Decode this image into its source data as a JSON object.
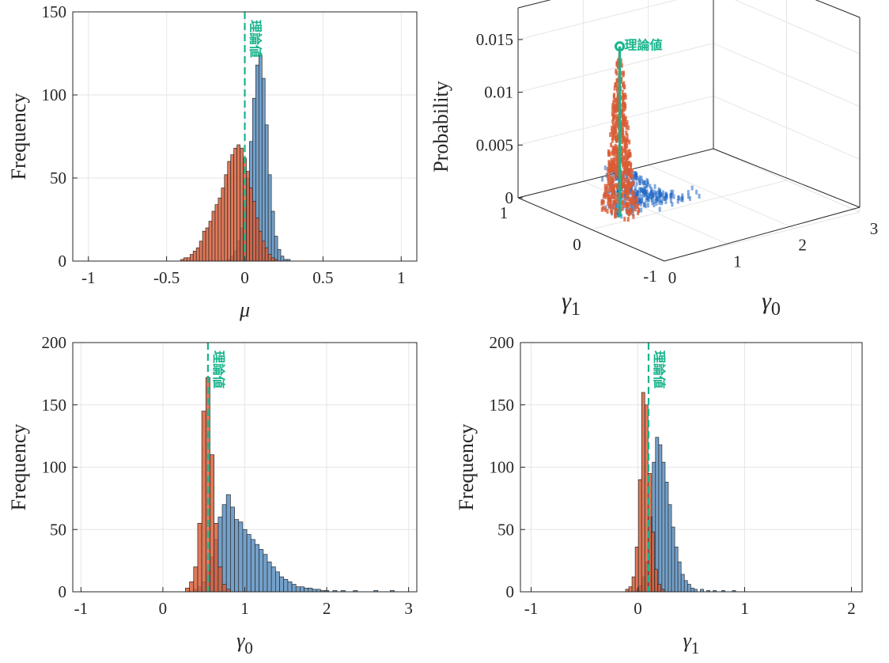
{
  "colors": {
    "series_a": "#6d9cc8",
    "series_b": "#d95b35",
    "overlap": "#8a4a50",
    "theory": "#18b48c",
    "grid": "#e6e6e6",
    "axis": "#262626",
    "scatter_a": "#1f66c4"
  },
  "annotation": "理論値",
  "chart_data": [
    {
      "type": "bar",
      "subtype": "histogram-overlay",
      "xlabel": "μ",
      "ylabel": "Frequency",
      "xlim": [
        -1.1,
        1.1
      ],
      "ylim": [
        0,
        150
      ],
      "xticks": [
        "-1",
        "-0.5",
        "0",
        "0.5",
        "1"
      ],
      "xtick_values": [
        -1,
        -0.5,
        0,
        0.5,
        1
      ],
      "yticks": [
        "0",
        "50",
        "100",
        "150"
      ],
      "ytick_values": [
        0,
        50,
        100,
        150
      ],
      "grid": true,
      "theory_value": 0,
      "series": [
        {
          "x": [
            -0.1,
            -0.08,
            -0.06,
            -0.04,
            -0.02,
            0.0,
            0.02,
            0.04,
            0.06,
            0.08,
            0.1,
            0.12,
            0.14,
            0.16,
            0.18,
            0.2,
            0.22,
            0.24,
            0.26,
            0.28
          ],
          "values": [
            1,
            3,
            6,
            12,
            20,
            32,
            50,
            72,
            98,
            118,
            124,
            110,
            82,
            52,
            30,
            15,
            7,
            3,
            1,
            1
          ]
        },
        {
          "x": [
            -0.4,
            -0.38,
            -0.36,
            -0.34,
            -0.32,
            -0.3,
            -0.28,
            -0.26,
            -0.24,
            -0.22,
            -0.2,
            -0.18,
            -0.16,
            -0.14,
            -0.12,
            -0.1,
            -0.08,
            -0.06,
            -0.04,
            -0.02,
            0.0,
            0.02,
            0.04,
            0.06,
            0.08,
            0.1,
            0.12,
            0.14,
            0.16,
            0.18,
            0.2
          ],
          "values": [
            1,
            2,
            2,
            4,
            6,
            8,
            12,
            18,
            20,
            24,
            30,
            34,
            38,
            44,
            52,
            60,
            64,
            68,
            70,
            68,
            62,
            54,
            44,
            36,
            26,
            18,
            12,
            8,
            4,
            2,
            1
          ]
        }
      ]
    },
    {
      "type": "scatter",
      "subtype": "3d-scatter",
      "xlabel": "γ0",
      "ylabel": "γ1",
      "zlabel": "Probability",
      "xlim": [
        0,
        3
      ],
      "ylim": [
        -1,
        1
      ],
      "zlim": [
        0,
        0.018
      ],
      "xticks": [
        "0",
        "1",
        "2",
        "3"
      ],
      "yticks": [
        "-1",
        "0",
        "1"
      ],
      "zticks": [
        "0",
        "0.005",
        "0.01",
        "0.015"
      ],
      "theory_point": {
        "g0": 0.55,
        "g1": 0.1,
        "p": 0.0162
      }
    },
    {
      "type": "bar",
      "subtype": "histogram-overlay",
      "xlabel": "γ0",
      "ylabel": "Frequency",
      "xlim": [
        -1.1,
        3.1
      ],
      "ylim": [
        0,
        200
      ],
      "xticks": [
        "-1",
        "0",
        "1",
        "2",
        "3"
      ],
      "xtick_values": [
        -1,
        0,
        1,
        2,
        3
      ],
      "yticks": [
        "0",
        "50",
        "100",
        "150",
        "200"
      ],
      "ytick_values": [
        0,
        50,
        100,
        150,
        200
      ],
      "grid": true,
      "theory_value": 0.55,
      "series": [
        {
          "x": [
            0.4,
            0.45,
            0.5,
            0.55,
            0.6,
            0.65,
            0.7,
            0.75,
            0.8,
            0.85,
            0.9,
            0.95,
            1.0,
            1.05,
            1.1,
            1.15,
            1.2,
            1.25,
            1.3,
            1.35,
            1.4,
            1.45,
            1.5,
            1.55,
            1.6,
            1.65,
            1.7,
            1.75,
            1.8,
            1.85,
            1.9,
            1.95,
            2.0,
            2.1,
            2.2,
            2.35,
            2.6,
            2.8
          ],
          "values": [
            2,
            4,
            8,
            16,
            28,
            42,
            60,
            70,
            78,
            68,
            58,
            56,
            50,
            46,
            42,
            38,
            34,
            30,
            24,
            20,
            16,
            12,
            10,
            8,
            6,
            4,
            4,
            3,
            3,
            2,
            2,
            1,
            1,
            1,
            1,
            1,
            1,
            1
          ]
        },
        {
          "x": [
            0.3,
            0.35,
            0.4,
            0.45,
            0.5,
            0.55,
            0.6,
            0.65,
            0.7,
            0.75,
            0.8
          ],
          "values": [
            3,
            8,
            20,
            55,
            145,
            172,
            110,
            55,
            20,
            6,
            2
          ]
        }
      ]
    },
    {
      "type": "bar",
      "subtype": "histogram-overlay",
      "xlabel": "γ1",
      "ylabel": "Frequency",
      "xlim": [
        -1.1,
        2.1
      ],
      "ylim": [
        0,
        200
      ],
      "xticks": [
        "-1",
        "0",
        "1",
        "2"
      ],
      "xtick_values": [
        -1,
        0,
        1,
        2
      ],
      "yticks": [
        "0",
        "50",
        "100",
        "150",
        "200"
      ],
      "ytick_values": [
        0,
        50,
        100,
        150,
        200
      ],
      "grid": true,
      "theory_value": 0.1,
      "series": [
        {
          "x": [
            0.0,
            0.03,
            0.06,
            0.09,
            0.12,
            0.15,
            0.18,
            0.21,
            0.24,
            0.27,
            0.3,
            0.33,
            0.36,
            0.39,
            0.42,
            0.45,
            0.48,
            0.51,
            0.54,
            0.6,
            0.66,
            0.72,
            0.8,
            0.9
          ],
          "values": [
            2,
            5,
            12,
            24,
            60,
            104,
            124,
            118,
            104,
            88,
            70,
            52,
            36,
            24,
            14,
            9,
            6,
            3,
            2,
            2,
            1,
            1,
            1,
            1
          ]
        },
        {
          "x": [
            -0.1,
            -0.07,
            -0.04,
            -0.01,
            0.02,
            0.05,
            0.08,
            0.11,
            0.14,
            0.17,
            0.2,
            0.23
          ],
          "values": [
            2,
            4,
            12,
            36,
            90,
            160,
            150,
            95,
            48,
            18,
            6,
            2
          ]
        }
      ]
    }
  ]
}
